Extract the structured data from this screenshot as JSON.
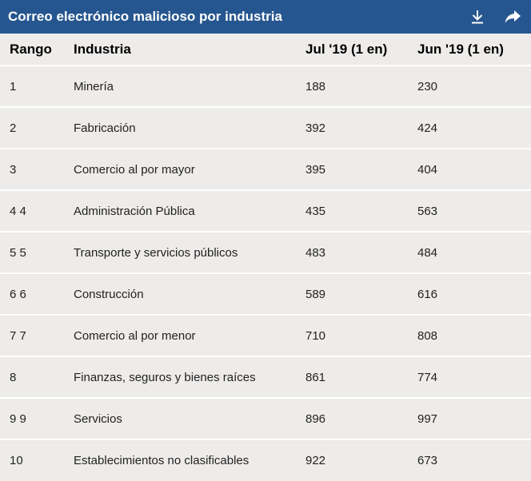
{
  "header": {
    "title": "Correo electrónico malicioso por industria",
    "download_icon": "download-icon",
    "share_icon": "share-arrow-icon",
    "color": "#26568f"
  },
  "table": {
    "columns": [
      "Rango",
      "Industria",
      "Jul '19 (1 en)",
      "Jun '19 (1 en)"
    ],
    "rows": [
      {
        "rank": "1",
        "industry": "Minería",
        "jul": "188",
        "jun": "230"
      },
      {
        "rank": "2",
        "industry": "Fabricación",
        "jul": "392",
        "jun": "424"
      },
      {
        "rank": "3",
        "industry": "Comercio al por mayor",
        "jul": "395",
        "jun": "404"
      },
      {
        "rank": "4 4",
        "industry": "Administración Pública",
        "jul": "435",
        "jun": "563"
      },
      {
        "rank": "5 5",
        "industry": "Transporte y servicios públicos",
        "jul": "483",
        "jun": "484"
      },
      {
        "rank": "6 6",
        "industry": "Construcción",
        "jul": "589",
        "jun": "616"
      },
      {
        "rank": "7 7",
        "industry": "Comercio al por menor",
        "jul": "710",
        "jun": "808"
      },
      {
        "rank": "8",
        "industry": "Finanzas, seguros y bienes raíces",
        "jul": "861",
        "jun": "774"
      },
      {
        "rank": "9 9",
        "industry": "Servicios",
        "jul": "896",
        "jun": "997"
      },
      {
        "rank": "10",
        "industry": "Establecimientos no clasificables",
        "jul": "922",
        "jun": "673"
      }
    ]
  }
}
